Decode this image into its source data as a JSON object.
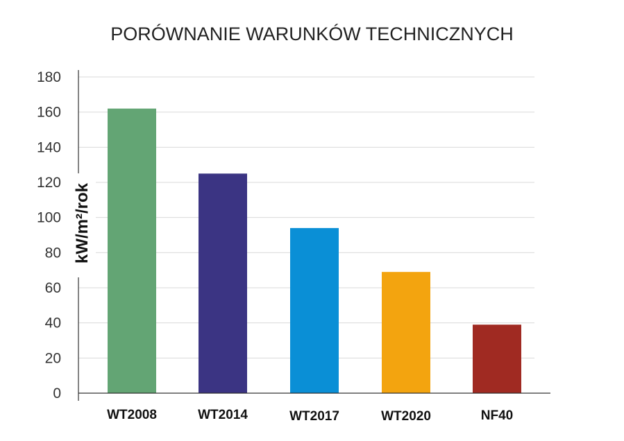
{
  "chart_data": {
    "type": "bar",
    "title": "PORÓWNANIE WARUNKÓW TECHNICZNYCH",
    "ylabel": "kW/m²/rok",
    "xlabel": "",
    "categories": [
      "WT2008",
      "WT2014",
      "WT2017",
      "WT2020",
      "NF40"
    ],
    "values": [
      162,
      125,
      94,
      69,
      39
    ],
    "colors": [
      "#63a574",
      "#3b3483",
      "#0a8fd6",
      "#f3a40f",
      "#a02a22"
    ],
    "ylim": [
      0,
      180
    ],
    "yticks": [
      0,
      20,
      40,
      60,
      80,
      100,
      120,
      140,
      160,
      180
    ],
    "grid": true,
    "legend": "none"
  }
}
